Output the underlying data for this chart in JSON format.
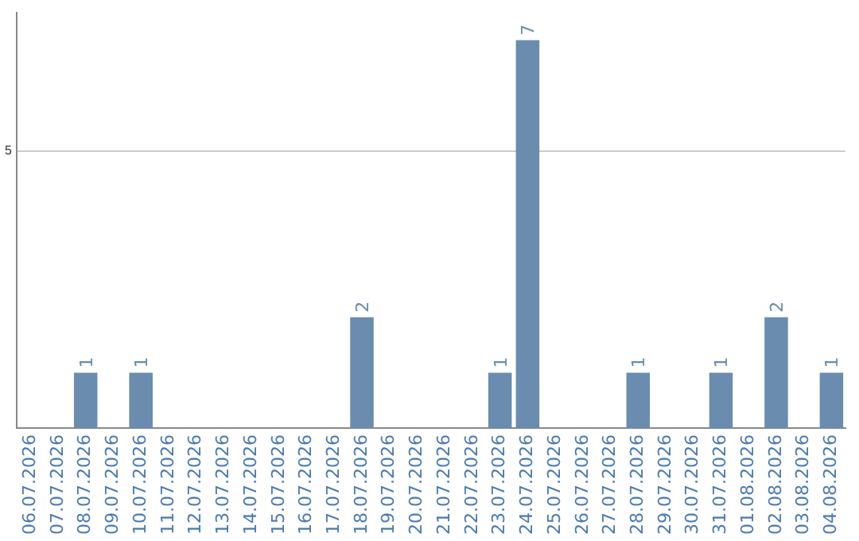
{
  "chart_data": {
    "type": "bar",
    "categories": [
      "06.07.2026",
      "07.07.2026",
      "08.07.2026",
      "09.07.2026",
      "10.07.2026",
      "11.07.2026",
      "12.07.2026",
      "13.07.2026",
      "14.07.2026",
      "15.07.2026",
      "16.07.2026",
      "17.07.2026",
      "18.07.2026",
      "19.07.2026",
      "20.07.2026",
      "21.07.2026",
      "22.07.2026",
      "23.07.2026",
      "24.07.2026",
      "25.07.2026",
      "26.07.2026",
      "27.07.2026",
      "28.07.2026",
      "29.07.2026",
      "30.07.2026",
      "31.07.2026",
      "01.08.2026",
      "02.08.2026",
      "03.08.2026",
      "04.08.2026"
    ],
    "values": [
      0,
      0,
      1,
      0,
      1,
      0,
      0,
      0,
      0,
      0,
      0,
      0,
      2,
      0,
      0,
      0,
      0,
      1,
      7,
      0,
      0,
      0,
      1,
      0,
      0,
      1,
      0,
      2,
      0,
      1
    ],
    "value_labels": [
      null,
      null,
      "1",
      null,
      "1",
      null,
      null,
      null,
      null,
      null,
      null,
      null,
      "2",
      null,
      null,
      null,
      null,
      "1",
      "7",
      null,
      null,
      null,
      "1",
      null,
      null,
      "1",
      null,
      "2",
      null,
      "1"
    ],
    "color": "#6a8caf",
    "ylim": [
      0,
      7.5
    ],
    "yticks": [
      5
    ],
    "grid": "y",
    "legend": false
  }
}
